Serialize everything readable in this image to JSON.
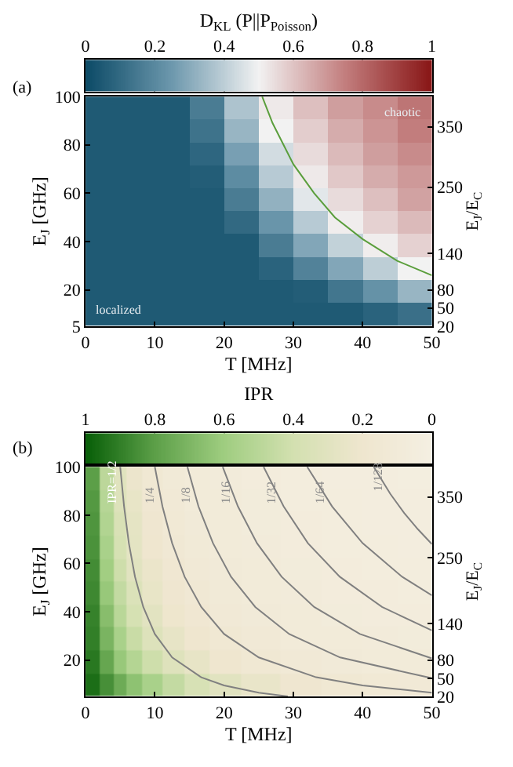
{
  "chart_data": [
    {
      "type": "heatmap",
      "clabel": "D$_{KL}$ (P||P$_{Poisson}$)",
      "xlabel": "T [MHz]",
      "ylabel": "E$_{J}$ [GHz]",
      "y2label": "E$_{J}$/E$_{C}$",
      "x": [
        2.5,
        7.5,
        12.5,
        17.5,
        22.5,
        27.5,
        32.5,
        37.5,
        42.5,
        47.5
      ],
      "cells": [
        [
          0.05,
          0.05,
          0.05,
          0.16,
          0.37,
          0.52,
          0.61,
          0.68,
          0.72,
          0.77
        ],
        [
          0.05,
          0.05,
          0.05,
          0.13,
          0.33,
          0.5,
          0.58,
          0.65,
          0.7,
          0.75
        ],
        [
          0.05,
          0.05,
          0.05,
          0.09,
          0.27,
          0.44,
          0.55,
          0.62,
          0.68,
          0.72
        ],
        [
          0.05,
          0.05,
          0.05,
          0.06,
          0.21,
          0.39,
          0.52,
          0.59,
          0.65,
          0.69
        ],
        [
          0.05,
          0.05,
          0.05,
          0.05,
          0.16,
          0.32,
          0.47,
          0.55,
          0.61,
          0.67
        ],
        [
          0.05,
          0.05,
          0.05,
          0.05,
          0.1,
          0.24,
          0.39,
          0.51,
          0.57,
          0.62
        ],
        [
          0.05,
          0.05,
          0.05,
          0.05,
          0.05,
          0.16,
          0.29,
          0.41,
          0.51,
          0.57
        ],
        [
          0.05,
          0.05,
          0.05,
          0.05,
          0.05,
          0.08,
          0.18,
          0.29,
          0.4,
          0.5
        ],
        [
          0.05,
          0.05,
          0.05,
          0.05,
          0.05,
          0.05,
          0.06,
          0.14,
          0.23,
          0.33
        ],
        [
          0.05,
          0.05,
          0.05,
          0.05,
          0.05,
          0.05,
          0.05,
          0.05,
          0.08,
          0.12
        ]
      ],
      "clim": [
        0,
        1
      ],
      "cticks": [
        0,
        0.2,
        0.4,
        0.6,
        0.8,
        1
      ],
      "xlim": [
        0,
        50
      ],
      "xticks": [
        0,
        10,
        20,
        30,
        40,
        50
      ],
      "ylim": [
        5,
        100
      ],
      "yticks": [
        5,
        20,
        40,
        60,
        80,
        100
      ],
      "y2lim": [
        20,
        400
      ],
      "y2ticks": [
        20,
        50,
        80,
        140,
        250,
        350
      ],
      "series": [
        {
          "type": "line",
          "color": "#5a9e3c",
          "x": [
            25.5,
            27,
            30,
            33,
            36,
            40,
            45,
            50
          ],
          "values": [
            100,
            89,
            72,
            60,
            50,
            41,
            32,
            26
          ]
        }
      ],
      "annotations": [
        "(a)",
        "localized",
        "chaotic"
      ]
    },
    {
      "type": "heatmap",
      "clabel": "IPR",
      "xlabel": "T [MHz]",
      "ylabel": "E$_{J}$ [GHz]",
      "y2label": "E$_{J}$/E$_{C}$",
      "x": [
        1,
        3,
        5,
        7,
        9.5,
        12.5,
        16,
        20,
        25,
        31,
        37,
        42.5,
        47.5
      ],
      "cells": [
        [
          0.8,
          0.49,
          0.31,
          0.22,
          0.16,
          0.12,
          0.1,
          0.08,
          0.06,
          0.05,
          0.04,
          0.04,
          0.03
        ],
        [
          0.82,
          0.51,
          0.33,
          0.25,
          0.17,
          0.13,
          0.1,
          0.09,
          0.07,
          0.05,
          0.05,
          0.04,
          0.04
        ],
        [
          0.83,
          0.53,
          0.36,
          0.27,
          0.19,
          0.14,
          0.11,
          0.09,
          0.07,
          0.06,
          0.05,
          0.04,
          0.04
        ],
        [
          0.84,
          0.56,
          0.38,
          0.28,
          0.2,
          0.15,
          0.12,
          0.1,
          0.08,
          0.06,
          0.05,
          0.05,
          0.04
        ],
        [
          0.86,
          0.59,
          0.42,
          0.3,
          0.23,
          0.17,
          0.13,
          0.11,
          0.09,
          0.07,
          0.06,
          0.05,
          0.05
        ],
        [
          0.87,
          0.62,
          0.46,
          0.34,
          0.25,
          0.19,
          0.15,
          0.12,
          0.1,
          0.08,
          0.06,
          0.06,
          0.05
        ],
        [
          0.89,
          0.67,
          0.5,
          0.38,
          0.29,
          0.21,
          0.17,
          0.13,
          0.11,
          0.09,
          0.07,
          0.06,
          0.06
        ],
        [
          0.9,
          0.71,
          0.56,
          0.44,
          0.33,
          0.26,
          0.2,
          0.16,
          0.13,
          0.1,
          0.09,
          0.08,
          0.07
        ],
        [
          0.92,
          0.77,
          0.62,
          0.52,
          0.42,
          0.32,
          0.26,
          0.2,
          0.16,
          0.13,
          0.11,
          0.1,
          0.09
        ],
        [
          0.95,
          0.85,
          0.75,
          0.65,
          0.56,
          0.46,
          0.37,
          0.3,
          0.24,
          0.19,
          0.16,
          0.14,
          0.13
        ]
      ],
      "clim": [
        1,
        0
      ],
      "cticks": [
        1,
        0.8,
        0.6,
        0.4,
        0.2,
        0
      ],
      "xlim": [
        0,
        50
      ],
      "xticks": [
        0,
        10,
        20,
        30,
        40,
        50
      ],
      "ylim": [
        5,
        100
      ],
      "yticks": [
        20,
        40,
        60,
        80,
        100
      ],
      "y2lim": [
        20,
        400
      ],
      "y2ticks": [
        20,
        50,
        80,
        140,
        250,
        350
      ],
      "series": [
        {
          "type": "line",
          "name": "IPR=1/2",
          "color": "#808080",
          "x": [
            5,
            5.56,
            6.25,
            7.14,
            8.33,
            10,
            12.5,
            16.7,
            20,
            25,
            29.2
          ],
          "values": [
            100,
            83.6,
            68.4,
            54.5,
            42,
            30.8,
            21.1,
            12.9,
            9.5,
            6.5,
            5
          ]
        },
        {
          "type": "line",
          "name": "1/4",
          "color": "#808080",
          "x": [
            10,
            11.1,
            12.5,
            14.3,
            16.7,
            20,
            25,
            33.3,
            40,
            50
          ],
          "values": [
            100,
            83.6,
            68.4,
            54.5,
            42,
            30.8,
            21.1,
            12.9,
            9.5,
            6.5
          ]
        },
        {
          "type": "line",
          "name": "1/8",
          "color": "#808080",
          "x": [
            14.7,
            16.3,
            18.4,
            21,
            24.5,
            29.4,
            36.75,
            50
          ],
          "values": [
            100,
            83.6,
            68.4,
            54.5,
            42,
            30.8,
            21.1,
            12.5
          ]
        },
        {
          "type": "line",
          "name": "1/16",
          "color": "#808080",
          "x": [
            19.8,
            22,
            24.75,
            28.3,
            33,
            39.6,
            50
          ],
          "values": [
            100,
            83.6,
            68.4,
            54.5,
            42,
            30.8,
            20.7
          ]
        },
        {
          "type": "line",
          "name": "1/32",
          "color": "#808080",
          "x": [
            25.7,
            28.6,
            32.1,
            36.7,
            42.8,
            50
          ],
          "values": [
            100,
            83.6,
            68.4,
            54.5,
            42,
            32.3
          ]
        },
        {
          "type": "line",
          "name": "1/64",
          "color": "#808080",
          "x": [
            32,
            35.6,
            40,
            45.7,
            50
          ],
          "values": [
            100,
            83.6,
            68.4,
            54.5,
            46.8
          ]
        },
        {
          "type": "line",
          "name": "1/128",
          "color": "#808080",
          "x": [
            41.6,
            44,
            46,
            48,
            50
          ],
          "values": [
            100,
            88.8,
            80.9,
            74.1,
            68
          ]
        }
      ],
      "annotations": [
        "(b)"
      ]
    }
  ]
}
